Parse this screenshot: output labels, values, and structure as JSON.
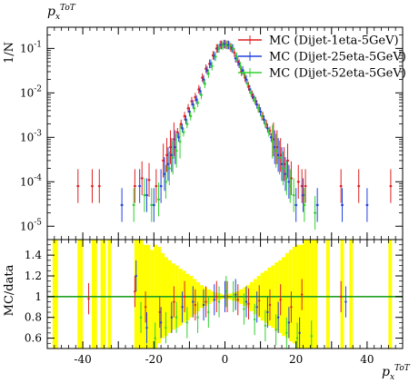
{
  "chart_data": {
    "type": "scatter",
    "top_title": "p_x^{ToT}",
    "x_axis_label": "p_x^{ToT}",
    "y_axis_label_main": "1/N",
    "y_axis_label_ratio": "MC/data",
    "xlim": [
      -50,
      50
    ],
    "ylim_main_log": [
      5e-06,
      0.3
    ],
    "ylim_ratio": [
      0.5,
      1.55
    ],
    "x_ticks": [
      "-40",
      "-20",
      "0",
      "20",
      "40"
    ],
    "y_ticks_main": [
      "10^{-1}",
      "10^{-2}",
      "10^{-3}",
      "10^{-4}",
      "10^{-5}"
    ],
    "y_ticks_ratio": [
      "1.4",
      "1.2",
      "1",
      "0.8",
      "0.6"
    ],
    "legend_position": "top-right",
    "series": [
      {
        "name": "MC (Dijet-1eta-5GeV)",
        "color": "#e02020",
        "points": [
          [
            -41,
            8e-05
          ],
          [
            -37,
            8e-05
          ],
          [
            -35,
            8e-05
          ],
          [
            -25,
            8e-05
          ],
          [
            -23,
            0.00012
          ],
          [
            -21,
            0.00011
          ],
          [
            -19,
            8e-05
          ],
          [
            -17,
            0.0003
          ],
          [
            -16,
            0.0004
          ],
          [
            -15,
            0.0006
          ],
          [
            -14,
            0.0009
          ],
          [
            -13,
            0.0013
          ],
          [
            -12,
            0.002
          ],
          [
            -11,
            0.003
          ],
          [
            -10,
            0.0045
          ],
          [
            -9,
            0.0065
          ],
          [
            -8,
            0.008
          ],
          [
            -7,
            0.012
          ],
          [
            -6,
            0.022
          ],
          [
            -5,
            0.035
          ],
          [
            -4,
            0.045
          ],
          [
            -3,
            0.07
          ],
          [
            -2,
            0.1
          ],
          [
            -1,
            0.12
          ],
          [
            0,
            0.125
          ],
          [
            1,
            0.12
          ],
          [
            2,
            0.105
          ],
          [
            3,
            0.08
          ],
          [
            4,
            0.05
          ],
          [
            5,
            0.03
          ],
          [
            6,
            0.022
          ],
          [
            7,
            0.014
          ],
          [
            8,
            0.009
          ],
          [
            9,
            0.0065
          ],
          [
            10,
            0.0045
          ],
          [
            11,
            0.003
          ],
          [
            12,
            0.002
          ],
          [
            13,
            0.0014
          ],
          [
            14,
            0.0009
          ],
          [
            15,
            0.0006
          ],
          [
            16,
            0.0004
          ],
          [
            17,
            0.00025
          ],
          [
            18,
            0.0003
          ],
          [
            19,
            0.00012
          ],
          [
            21,
            0.0001
          ],
          [
            22,
            8e-05
          ],
          [
            23,
            8e-05
          ],
          [
            33,
            8e-05
          ],
          [
            38,
            8e-05
          ],
          [
            47,
            8e-05
          ]
        ],
        "ratio_points": [
          [
            -38,
            0.98
          ],
          [
            -25,
            1.05
          ],
          [
            -22,
            0.9
          ],
          [
            -18,
            0.85
          ],
          [
            -14,
            0.95
          ],
          [
            -11,
            1.0
          ],
          [
            -8,
            0.92
          ],
          [
            -5,
            0.95
          ],
          [
            -2,
            1.0
          ],
          [
            1,
            1.0
          ],
          [
            4,
            0.97
          ],
          [
            7,
            0.93
          ],
          [
            10,
            0.96
          ],
          [
            13,
            0.92
          ],
          [
            16,
            0.97
          ],
          [
            19,
            0.9
          ],
          [
            22,
            1.02
          ],
          [
            33,
            1.0
          ]
        ]
      },
      {
        "name": "MC (Dijet-25eta-5GeV)",
        "color": "#2040e0",
        "points": [
          [
            -29,
            3e-05
          ],
          [
            -24,
            8e-05
          ],
          [
            -22,
            5e-05
          ],
          [
            -20,
            3e-05
          ],
          [
            -18,
            8e-05
          ],
          [
            -17,
            0.00015
          ],
          [
            -16,
            0.00025
          ],
          [
            -15,
            0.0004
          ],
          [
            -14,
            0.0006
          ],
          [
            -13,
            0.001
          ],
          [
            -12,
            0.0016
          ],
          [
            -11,
            0.0025
          ],
          [
            -10,
            0.0038
          ],
          [
            -9,
            0.0055
          ],
          [
            -8,
            0.007
          ],
          [
            -7,
            0.011
          ],
          [
            -6,
            0.02
          ],
          [
            -5,
            0.032
          ],
          [
            -4,
            0.045
          ],
          [
            -3,
            0.068
          ],
          [
            -2,
            0.1
          ],
          [
            -1,
            0.12
          ],
          [
            0,
            0.125
          ],
          [
            1,
            0.12
          ],
          [
            2,
            0.1
          ],
          [
            3,
            0.06
          ],
          [
            4,
            0.045
          ],
          [
            5,
            0.032
          ],
          [
            6,
            0.02
          ],
          [
            7,
            0.012
          ],
          [
            8,
            0.008
          ],
          [
            9,
            0.0055
          ],
          [
            10,
            0.0038
          ],
          [
            11,
            0.0025
          ],
          [
            12,
            0.0016
          ],
          [
            13,
            0.001
          ],
          [
            14,
            0.0006
          ],
          [
            15,
            0.0004
          ],
          [
            16,
            0.00025
          ],
          [
            17,
            0.00015
          ],
          [
            18,
            0.0001
          ],
          [
            20,
            3e-05
          ],
          [
            22,
            5e-05
          ],
          [
            26,
            3e-05
          ],
          [
            33,
            3e-05
          ],
          [
            40,
            3e-05
          ]
        ],
        "ratio_points": [
          [
            -25,
            1.2
          ],
          [
            -22,
            0.7
          ],
          [
            -18,
            0.75
          ],
          [
            -15,
            0.8
          ],
          [
            -12,
            0.9
          ],
          [
            -9,
            0.95
          ],
          [
            -6,
            0.92
          ],
          [
            -3,
            0.97
          ],
          [
            0,
            1.0
          ],
          [
            3,
            1.02
          ],
          [
            6,
            0.95
          ],
          [
            9,
            0.9
          ],
          [
            12,
            0.85
          ],
          [
            15,
            0.8
          ],
          [
            18,
            0.75
          ],
          [
            21,
            0.65
          ],
          [
            34,
            0.95
          ]
        ]
      },
      {
        "name": "MC (Dijet-52eta-5GeV)",
        "color": "#30d030",
        "points": [
          [
            -26,
            3e-05
          ],
          [
            -23,
            5e-05
          ],
          [
            -21,
            3e-05
          ],
          [
            -19,
            4e-05
          ],
          [
            -17,
            0.0001
          ],
          [
            -16,
            0.0002
          ],
          [
            -15,
            0.00035
          ],
          [
            -14,
            0.0005
          ],
          [
            -13,
            0.0008
          ],
          [
            -12,
            0.0013
          ],
          [
            -11,
            0.002
          ],
          [
            -10,
            0.003
          ],
          [
            -9,
            0.0045
          ],
          [
            -8,
            0.006
          ],
          [
            -7,
            0.009
          ],
          [
            -6,
            0.016
          ],
          [
            -5,
            0.027
          ],
          [
            -4,
            0.04
          ],
          [
            -3,
            0.065
          ],
          [
            -2,
            0.1
          ],
          [
            -1,
            0.115
          ],
          [
            0,
            0.12
          ],
          [
            1,
            0.115
          ],
          [
            2,
            0.1
          ],
          [
            3,
            0.065
          ],
          [
            4,
            0.04
          ],
          [
            5,
            0.027
          ],
          [
            6,
            0.016
          ],
          [
            7,
            0.01
          ],
          [
            8,
            0.007
          ],
          [
            9,
            0.0045
          ],
          [
            10,
            0.003
          ],
          [
            11,
            0.002
          ],
          [
            12,
            0.0013
          ],
          [
            13,
            0.0008
          ],
          [
            14,
            0.0005
          ],
          [
            15,
            0.00035
          ],
          [
            16,
            0.0002
          ],
          [
            17,
            0.00012
          ],
          [
            18,
            8e-05
          ],
          [
            19,
            5e-05
          ],
          [
            22,
            3e-05
          ],
          [
            25,
            2e-05
          ]
        ],
        "ratio_points": [
          [
            -24,
            0.8
          ],
          [
            -20,
            0.6
          ],
          [
            -17,
            0.7
          ],
          [
            -14,
            0.8
          ],
          [
            -11,
            0.75
          ],
          [
            -8,
            0.8
          ],
          [
            -5,
            0.85
          ],
          [
            -2,
            0.95
          ],
          [
            0,
            1.05
          ],
          [
            2,
            1.0
          ],
          [
            5,
            0.88
          ],
          [
            8,
            0.78
          ],
          [
            11,
            0.72
          ],
          [
            14,
            0.68
          ],
          [
            17,
            0.65
          ],
          [
            20,
            0.6
          ],
          [
            24,
            0.62
          ]
        ]
      }
    ],
    "ratio_band": {
      "color": "#ffff00",
      "reference_line_color": "#20a020",
      "reference_value": 1,
      "bins": [
        [
          -48.5,
          -47,
          0.5,
          1.55
        ],
        [
          -41.5,
          -40,
          0.5,
          1.55
        ],
        [
          -37.5,
          -36,
          0.5,
          1.55
        ],
        [
          -35,
          -33.5,
          0.5,
          1.55
        ],
        [
          -33,
          -32,
          0.5,
          1.55
        ],
        [
          -25.5,
          -24.5,
          0.5,
          1.55
        ],
        [
          -24.5,
          -23,
          0.5,
          1.55
        ],
        [
          -23,
          -22,
          0.5,
          1.5
        ],
        [
          -22,
          -21,
          0.5,
          1.5
        ],
        [
          -21,
          -20,
          0.5,
          1.45
        ],
        [
          -20,
          -19,
          0.5,
          1.5
        ],
        [
          -19,
          -18,
          0.55,
          1.48
        ],
        [
          -18,
          -17,
          0.6,
          1.42
        ],
        [
          -17,
          -16,
          0.62,
          1.38
        ],
        [
          -16,
          -15,
          0.65,
          1.35
        ],
        [
          -15,
          -14,
          0.68,
          1.32
        ],
        [
          -14,
          -13,
          0.7,
          1.3
        ],
        [
          -13,
          -12,
          0.72,
          1.27
        ],
        [
          -12,
          -11,
          0.75,
          1.25
        ],
        [
          -11,
          -10,
          0.77,
          1.22
        ],
        [
          -10,
          -9,
          0.8,
          1.2
        ],
        [
          -9,
          -8,
          0.83,
          1.17
        ],
        [
          -8,
          -7,
          0.86,
          1.14
        ],
        [
          -7,
          -6,
          0.89,
          1.11
        ],
        [
          -6,
          -5,
          0.91,
          1.09
        ],
        [
          -5,
          -4,
          0.93,
          1.07
        ],
        [
          -4,
          -3,
          0.95,
          1.05
        ],
        [
          -3,
          -2,
          0.96,
          1.04
        ],
        [
          -2,
          -1,
          0.97,
          1.03
        ],
        [
          -1,
          0,
          0.98,
          1.02
        ],
        [
          0,
          1,
          0.98,
          1.02
        ],
        [
          1,
          2,
          0.97,
          1.03
        ],
        [
          2,
          3,
          0.96,
          1.04
        ],
        [
          3,
          4,
          0.95,
          1.05
        ],
        [
          4,
          5,
          0.93,
          1.07
        ],
        [
          5,
          6,
          0.91,
          1.09
        ],
        [
          6,
          7,
          0.89,
          1.11
        ],
        [
          7,
          8,
          0.86,
          1.14
        ],
        [
          8,
          9,
          0.83,
          1.17
        ],
        [
          9,
          10,
          0.8,
          1.2
        ],
        [
          10,
          11,
          0.77,
          1.23
        ],
        [
          11,
          12,
          0.75,
          1.25
        ],
        [
          12,
          13,
          0.72,
          1.28
        ],
        [
          13,
          14,
          0.7,
          1.3
        ],
        [
          14,
          15,
          0.67,
          1.33
        ],
        [
          15,
          16,
          0.65,
          1.35
        ],
        [
          16,
          17,
          0.62,
          1.38
        ],
        [
          17,
          18,
          0.6,
          1.42
        ],
        [
          18,
          19,
          0.57,
          1.45
        ],
        [
          19,
          20,
          0.55,
          1.48
        ],
        [
          20,
          21,
          0.5,
          1.5
        ],
        [
          21,
          22,
          0.5,
          1.5
        ],
        [
          22,
          23,
          0.5,
          1.55
        ],
        [
          23,
          24,
          0.5,
          1.55
        ],
        [
          24,
          25,
          0.5,
          1.55
        ],
        [
          25,
          26,
          0.5,
          1.55
        ],
        [
          28.5,
          29.5,
          0.5,
          1.55
        ],
        [
          32.5,
          33.5,
          0.5,
          1.55
        ],
        [
          35,
          36,
          0.5,
          1.55
        ],
        [
          46,
          47,
          0.5,
          1.55
        ]
      ]
    }
  }
}
